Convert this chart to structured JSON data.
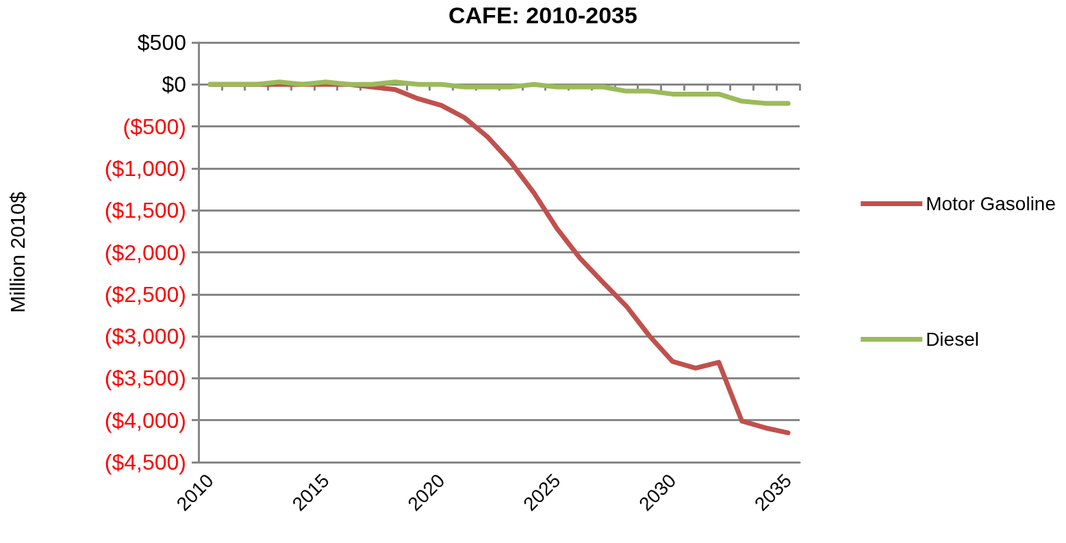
{
  "chart_data": {
    "type": "line",
    "title": "CAFE: 2010-2035",
    "ylabel": "Million 2010$",
    "categories": [
      "2010",
      null,
      null,
      null,
      null,
      "2015",
      null,
      null,
      null,
      null,
      "2020",
      null,
      null,
      null,
      null,
      "2025",
      null,
      null,
      null,
      null,
      "2030",
      null,
      null,
      null,
      null,
      "2035"
    ],
    "series": [
      {
        "name": "Motor Gasoline",
        "color": "#c0504d",
        "values": [
          0,
          0,
          0,
          0,
          0,
          0,
          0,
          -30,
          -60,
          -170,
          -250,
          -395,
          -625,
          -925,
          -1290,
          -1715,
          -2070,
          -2360,
          -2640,
          -2995,
          -3300,
          -3380,
          -3310,
          -4010,
          -4090,
          -4150
        ]
      },
      {
        "name": "Diesel",
        "color": "#9bbb59",
        "values": [
          0,
          0,
          0,
          30,
          0,
          30,
          0,
          0,
          30,
          0,
          0,
          -30,
          -30,
          -30,
          0,
          -30,
          -30,
          -30,
          -80,
          -80,
          -115,
          -115,
          -115,
          -200,
          -225,
          -225
        ]
      }
    ],
    "ylim": [
      -4500,
      500
    ],
    "yticks": [
      {
        "value": 500,
        "label": "$500"
      },
      {
        "value": 0,
        "label": "$0"
      },
      {
        "value": -500,
        "label": "($500)"
      },
      {
        "value": -1000,
        "label": "($1,000)"
      },
      {
        "value": -1500,
        "label": "($1,500)"
      },
      {
        "value": -2000,
        "label": "($2,000)"
      },
      {
        "value": -2500,
        "label": "($2,500)"
      },
      {
        "value": -3000,
        "label": "($3,000)"
      },
      {
        "value": -3500,
        "label": "($3,500)"
      },
      {
        "value": -4000,
        "label": "($4,000)"
      },
      {
        "value": -4500,
        "label": "($4,500)"
      }
    ],
    "grid": "y",
    "legend": "right",
    "marker": "none",
    "line_style": "solid"
  }
}
